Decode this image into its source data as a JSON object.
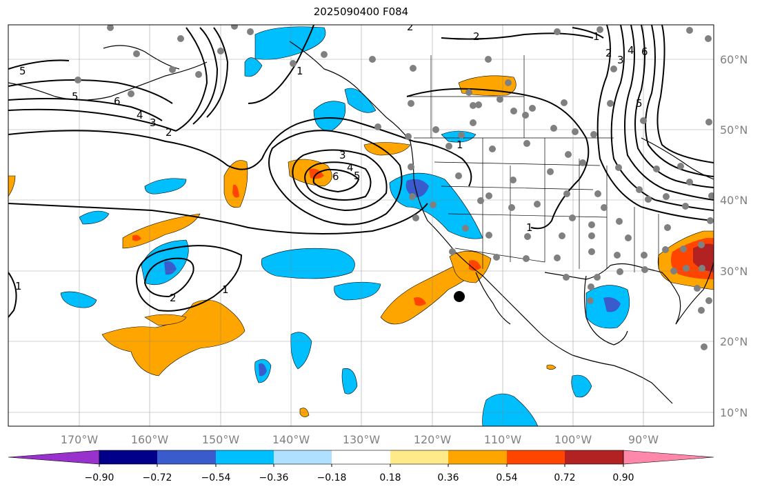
{
  "title": "2025090400 F084",
  "longitude_labels": [
    "170°W",
    "160°W",
    "150°W",
    "140°W",
    "130°W",
    "120°W",
    "110°W",
    "100°W",
    "90°W"
  ],
  "latitude_labels": [
    "60°N",
    "50°N",
    "40°N",
    "30°N",
    "20°N",
    "10°N"
  ],
  "colorbar": {
    "ticks": [
      "−0.90",
      "−0.72",
      "−0.54",
      "−0.36",
      "−0.18",
      "0.18",
      "0.36",
      "0.54",
      "0.72",
      "0.90"
    ],
    "colors": [
      "#9932cc",
      "#00008b",
      "#3a5bcc",
      "#00bfff",
      "#b0e0ff",
      "#ffffff",
      "#ffea8a",
      "#ffa500",
      "#ff4500",
      "#b22222",
      "#ff88aa"
    ]
  },
  "contour_labels": [
    "5",
    "5",
    "6",
    "4",
    "3",
    "2",
    "3",
    "4",
    "5",
    "6",
    "1",
    "2",
    "1",
    "1",
    "2",
    "1",
    "1",
    "2",
    "3",
    "4",
    "6",
    "5",
    "2",
    "1"
  ]
}
